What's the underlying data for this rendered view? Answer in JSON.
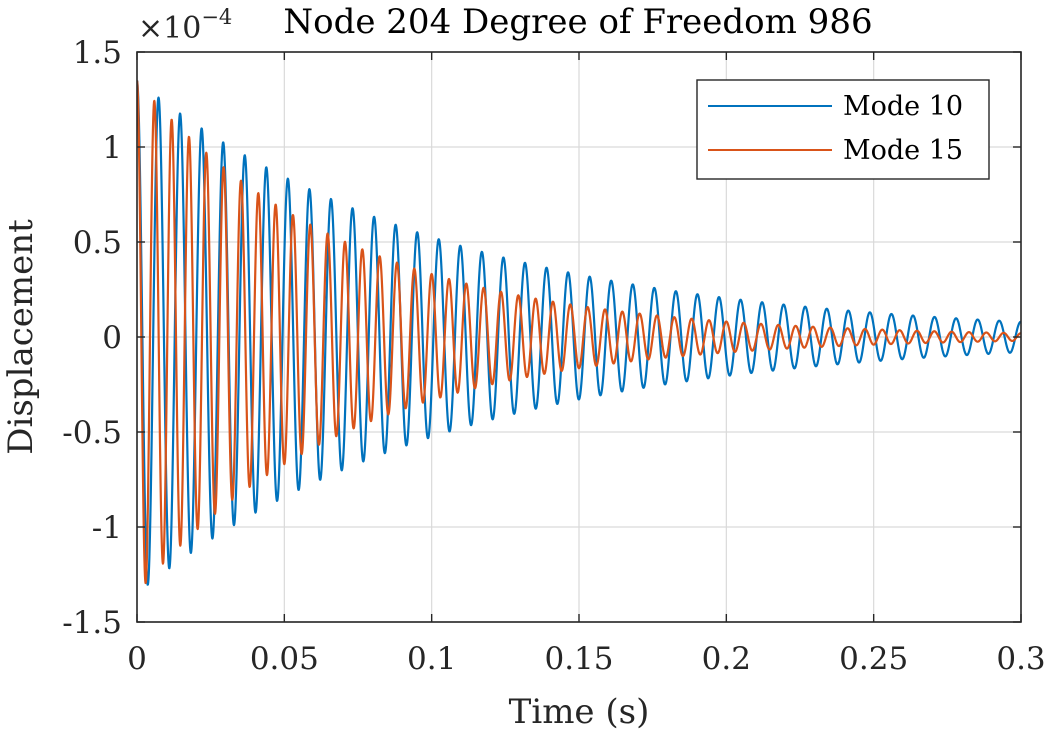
{
  "chart_data": {
    "type": "line",
    "title": "Node 204 Degree of Freedom 986",
    "xlabel": "Time (s)",
    "ylabel": "Displacement",
    "y_exponent_label": "×10",
    "y_exponent_power": "−4",
    "xlim": [
      0,
      0.3
    ],
    "ylim": [
      -1.5,
      1.5
    ],
    "x_ticks": [
      0,
      0.05,
      0.1,
      0.15,
      0.2,
      0.25,
      0.3
    ],
    "x_tick_labels": [
      "0",
      "0.05",
      "0.1",
      "0.15",
      "0.2",
      "0.25",
      "0.3"
    ],
    "y_ticks": [
      -1.5,
      -1,
      -0.5,
      0,
      0.5,
      1,
      1.5
    ],
    "y_tick_labels": [
      "-1.5",
      "-1",
      "-0.5",
      "0",
      "0.5",
      "1",
      "1.5"
    ],
    "grid": true,
    "legend_position": "top-right",
    "series": [
      {
        "name": "Mode 10",
        "color": "#0072BD",
        "amplitude_at_t0": 1.35,
        "amplitude_at_t0_3": 0.08,
        "frequency_hz": 136.7,
        "x": [
          0,
          0.05,
          0.1,
          0.15,
          0.2,
          0.25,
          0.3
        ],
        "envelope": [
          1.35,
          0.84,
          0.52,
          0.33,
          0.21,
          0.13,
          0.08
        ]
      },
      {
        "name": "Mode 15",
        "color": "#D95319",
        "amplitude_at_t0": 1.35,
        "amplitude_at_t0_3": 0.02,
        "frequency_hz": 170,
        "x": [
          0,
          0.05,
          0.1,
          0.15,
          0.2,
          0.25,
          0.3
        ],
        "envelope": [
          1.35,
          0.67,
          0.33,
          0.16,
          0.08,
          0.04,
          0.02
        ]
      }
    ]
  }
}
